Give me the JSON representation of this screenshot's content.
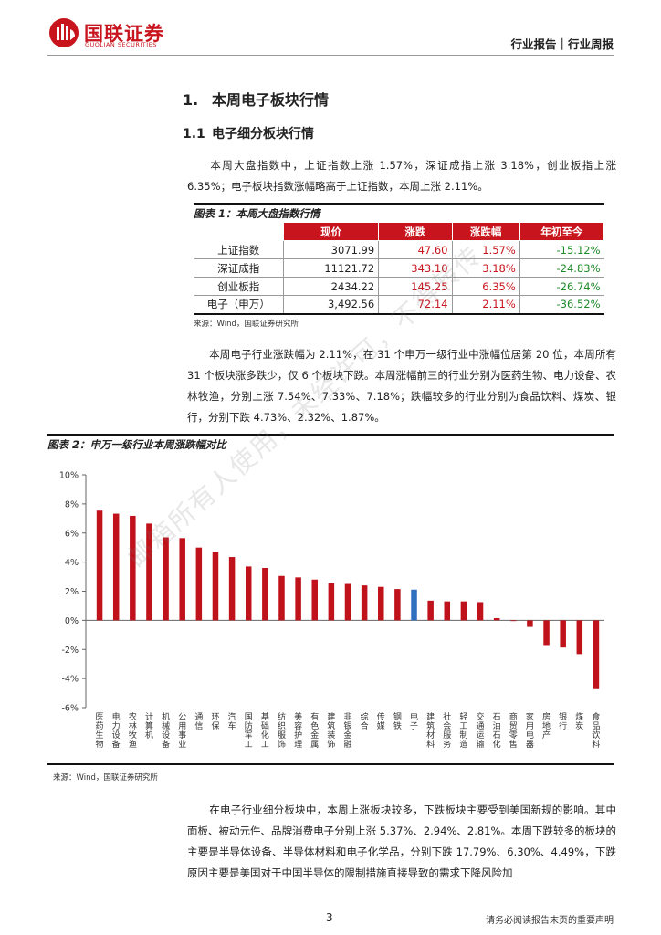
{
  "header": {
    "logo_cn": "国联证券",
    "logo_en": "GUOLIAN SECURITIES",
    "report_type": "行业报告｜行业周报"
  },
  "section1": {
    "num": "1.",
    "title": "本周电子板块行情"
  },
  "section1_1": {
    "num": "1.1",
    "title": "电子细分板块行情"
  },
  "para1": "本周大盘指数中，上证指数上涨 1.57%，深证成指上涨 3.18%，创业板指上涨 6.35%；电子板块指数涨幅略高于上证指数，本周上涨 2.11%。",
  "table1": {
    "title": "图表 1：本周大盘指数行情",
    "headers": [
      "",
      "现价",
      "涨跌",
      "涨跌幅",
      "年初至今"
    ],
    "rows": [
      [
        "上证指数",
        "3071.99",
        "47.60",
        "1.57%",
        "-15.12%"
      ],
      [
        "深证成指",
        "11121.72",
        "343.10",
        "3.18%",
        "-24.83%"
      ],
      [
        "创业板指",
        "2434.22",
        "145.25",
        "6.35%",
        "-26.74%"
      ],
      [
        "电子（申万）",
        "3,492.56",
        "72.14",
        "2.11%",
        "-36.52%"
      ]
    ],
    "source": "来源：Wind，国联证券研究所"
  },
  "para2": "本周电子行业涨跌幅为 2.11%，在 31 个申万一级行业中涨幅位居第 20 位，本周所有 31 个板块涨多跌少，仅 6 个板块下跌。本周涨幅前三的行业分别为医药生物、电力设备、农林牧渔，分别上涨 7.54%、7.33%、7.18%；跌幅较多的行业分别为食品饮料、煤炭、银行，分别下跌 4.73%、2.32%、1.87%。",
  "figure2_title": "图表 2：申万一级行业本周涨跌幅对比",
  "chart_data": {
    "type": "bar",
    "categories": [
      "医药生物",
      "电力设备",
      "农林牧渔",
      "计算机",
      "机械设备",
      "公用事业",
      "通信",
      "环保",
      "汽车",
      "国防军工",
      "基础化工",
      "纺织服饰",
      "美容护理",
      "有色金属",
      "建筑装饰",
      "非银金融",
      "综合",
      "传媒",
      "钢铁",
      "电子",
      "建筑材料",
      "社会服务",
      "轻工制造",
      "交通运输",
      "石油石化",
      "商贸零售",
      "家用电器",
      "房地产",
      "银行",
      "煤炭",
      "食品饮料"
    ],
    "values": [
      7.54,
      7.33,
      7.18,
      6.65,
      5.7,
      5.65,
      5.0,
      4.7,
      4.35,
      3.7,
      3.6,
      3.05,
      2.95,
      2.8,
      2.55,
      2.5,
      2.4,
      2.3,
      2.15,
      2.11,
      1.35,
      1.3,
      1.3,
      1.25,
      0.15,
      -0.05,
      -0.45,
      -1.7,
      -1.87,
      -2.32,
      -4.73
    ],
    "highlight": "电子",
    "bar_color": "#c0121b",
    "highlight_color": "#2f6fbf",
    "ylim": [
      -6,
      10
    ],
    "yticks": [
      "10%",
      "8%",
      "6%",
      "4%",
      "2%",
      "0%",
      "-2%",
      "-4%",
      "-6%"
    ],
    "title": "图表 2：申万一级行业本周涨跌幅对比",
    "xlabel": "",
    "ylabel": "",
    "grid": false
  },
  "figure2_source": "来源：Wind，国联证券研究所",
  "para3": "在电子行业细分板块中，本周上涨板块较多，下跌板块主要受到美国新规的影响。其中面板、被动元件、品牌消费电子分别上涨 5.37%、2.94%、2.81%。本周下跌较多的板块的主要是半导体设备、半导体材料和电子化学品，分别下跌 17.79%、6.30%、4.49%，下跌原因主要是美国对于中国半导体的限制措施直接导致的需求下降风险加",
  "footer": {
    "page": "3",
    "disclaimer": "请务必阅读报告末页的重要声明"
  },
  "watermark": "邮箱所有人使用，未经许可，不得转传"
}
